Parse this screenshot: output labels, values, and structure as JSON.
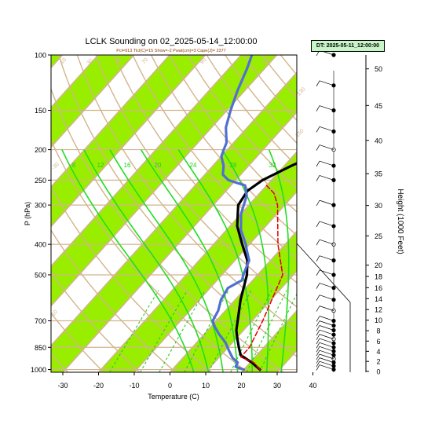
{
  "header": {
    "title": "LCLK Sounding on 02_2025-05-14_12:00:00",
    "indices": "Pcl=913 Tlcl(C)=15 Show=-2 Pwat(cm)=3 Cape(J)= 2377",
    "dt_label": "DT: 2025-05-11_12:00:00"
  },
  "chart_data": {
    "type": "line",
    "title": "LCLK Sounding on 02_2025-05-14_12:00:00",
    "xlabel": "Temperature (C)",
    "ylabel": "P (hPa)",
    "y2label": "Height (1000 Feet)",
    "xlim": [
      -33,
      42
    ],
    "ylim": [
      1020,
      100
    ],
    "y_scale": "log",
    "x_ticks": [
      "-30",
      "-20",
      "-10",
      "0",
      "10",
      "20",
      "30",
      "40"
    ],
    "x_tick_values": [
      -30,
      -20,
      -10,
      0,
      10,
      20,
      30,
      40
    ],
    "p_ticks": [
      "100",
      "150",
      "200",
      "250",
      "300",
      "400",
      "500",
      "700",
      "850",
      "1000"
    ],
    "p_tick_values": [
      100,
      150,
      200,
      250,
      300,
      400,
      500,
      700,
      850,
      1000
    ],
    "height_ticks": [
      "0",
      "2",
      "4",
      "6",
      "8",
      "10",
      "12",
      "14",
      "16",
      "18",
      "20",
      "25",
      "30",
      "35",
      "40",
      "45",
      "50"
    ],
    "height_tick_values": [
      0,
      2,
      4,
      6,
      8,
      10,
      12,
      14,
      16,
      18,
      20,
      25,
      30,
      35,
      40,
      45,
      50
    ],
    "mixing_ratio_labels": [
      "8",
      "12",
      "16",
      "20",
      "24",
      "28",
      "32"
    ],
    "mixing_ratio_values": [
      8,
      12,
      16,
      20,
      24,
      28,
      32
    ],
    "dry_adiabat_labels": [
      "-30",
      "-10",
      "10",
      "30",
      "50",
      "70",
      "90",
      "110",
      "130",
      "150"
    ],
    "dry_adiabat_values": [
      -30,
      -10,
      10,
      30,
      50,
      70,
      90,
      110,
      130,
      150
    ],
    "series": [
      {
        "color": "#000000",
        "points": [
          [
            24.5,
            1000
          ],
          [
            22.5,
            975
          ],
          [
            20.5,
            950
          ],
          [
            18,
            925
          ],
          [
            15.5,
            900
          ],
          [
            14,
            870
          ],
          [
            13,
            850
          ],
          [
            10.5,
            800
          ],
          [
            8,
            750
          ],
          [
            6,
            700
          ],
          [
            1.5,
            600
          ],
          [
            -3,
            500
          ],
          [
            -6.5,
            450
          ],
          [
            -12,
            400
          ],
          [
            -18,
            350
          ],
          [
            -23,
            300
          ],
          [
            -24,
            270
          ],
          [
            -22.5,
            250
          ],
          [
            -18,
            225
          ],
          [
            -12,
            200
          ],
          [
            -6,
            175
          ],
          [
            -2,
            150
          ],
          [
            1,
            130
          ],
          [
            5,
            110
          ],
          [
            6.5,
            100
          ]
        ]
      },
      {
        "color": "#5070d0",
        "points": [
          [
            20,
            1000
          ],
          [
            17,
            980
          ],
          [
            16.5,
            950
          ],
          [
            14,
            920
          ],
          [
            11,
            870
          ],
          [
            8,
            820
          ],
          [
            4,
            770
          ],
          [
            1,
            730
          ],
          [
            -1,
            700
          ],
          [
            -2,
            650
          ],
          [
            -4,
            600
          ],
          [
            -5,
            550
          ],
          [
            -3,
            520
          ],
          [
            -4,
            500
          ],
          [
            -6,
            450
          ],
          [
            -9,
            420
          ],
          [
            -11,
            400
          ],
          [
            -16,
            360
          ],
          [
            -20,
            320
          ],
          [
            -23,
            280
          ],
          [
            -26,
            260
          ],
          [
            -32,
            250
          ],
          [
            -35,
            240
          ],
          [
            -37,
            225
          ],
          [
            -40,
            210
          ],
          [
            -41,
            200
          ],
          [
            -42,
            190
          ],
          [
            -46,
            170
          ],
          [
            -49,
            150
          ],
          [
            -52,
            130
          ],
          [
            -55,
            110
          ],
          [
            -57,
            100
          ]
        ]
      },
      {
        "color": "#e00000",
        "style": "dashed",
        "points": [
          [
            24.5,
            1000
          ],
          [
            21,
            950
          ],
          [
            16,
            913
          ],
          [
            16,
            850
          ],
          [
            13,
            700
          ],
          [
            7,
            500
          ],
          [
            -2,
            400
          ],
          [
            -12,
            300
          ],
          [
            -16,
            275
          ],
          [
            -20,
            260
          ]
        ]
      }
    ],
    "wind_panel": {
      "height_ticks": [
        "0",
        "2",
        "4",
        "6",
        "8",
        "10",
        "12",
        "14",
        "16",
        "18",
        "20",
        "25",
        "30",
        "35",
        "40",
        "45",
        "50"
      ]
    },
    "grid": true,
    "legend": "none"
  }
}
